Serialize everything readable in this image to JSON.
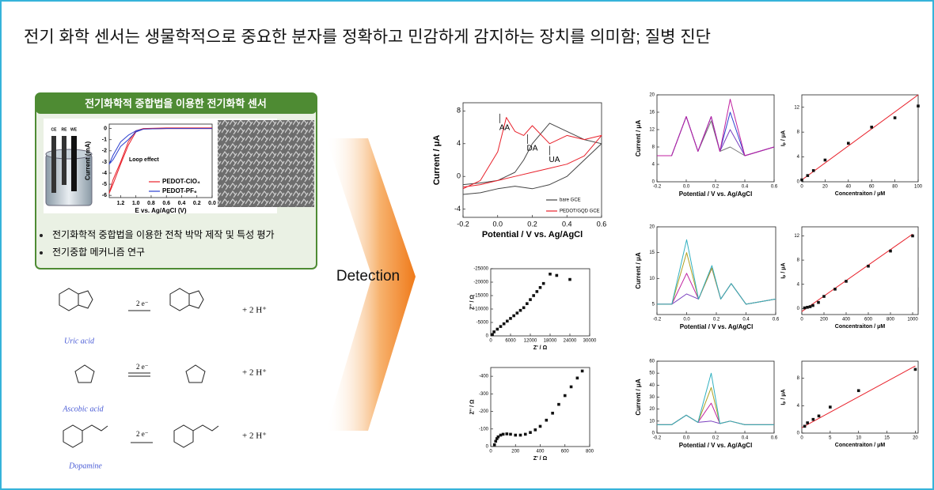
{
  "title": "전기 화학 센서는 생물학적으로 중요한 분자를 정확하고 민감하게 감지하는 장치를 의미함; 질병 진단",
  "panel": {
    "header": "전기화학적 중합법을 이용한 전기화학 센서",
    "cell_labels": [
      "CE",
      "RE",
      "WE"
    ],
    "bullets": [
      "전기화학적 중합법을 이용한 전착 박막 제작 및 특성 평가",
      "전기중합 메커니즘 연구"
    ]
  },
  "reactions": [
    {
      "name": "Uric acid",
      "electrons": "2 e⁻",
      "product": "+  2 H⁺"
    },
    {
      "name": "Ascobic acid",
      "electrons": "2 e⁻",
      "product": "+  2 H⁺"
    },
    {
      "name": "Dopamine",
      "electrons": "2 e⁻",
      "product": "+  2 H⁺"
    }
  ],
  "arrow_label": "Detection",
  "chart_data": [
    {
      "type": "line",
      "xlabel": "E vs. Ag/AgCl (V)",
      "ylabel": "Current (mA)",
      "annotation": "Loop effect",
      "xlim": [
        1.35,
        0.0
      ],
      "xticks": [
        1.2,
        {
          "value": 1.0,
          "label": "1.0"
        },
        0.8,
        0.6,
        0.4,
        0.2,
        {
          "value": 0.0,
          "label": "0.0"
        }
      ],
      "ylim": [
        -6.2,
        0.4
      ],
      "yticks": [
        0,
        -1,
        -2,
        -3,
        -4,
        -5,
        -6
      ],
      "legend": "lower right",
      "series": [
        {
          "name": "PEDOT-ClO₄",
          "color": "#e8202a",
          "x": [
            0.0,
            0.6,
            0.9,
            1.0,
            1.1,
            1.2,
            1.3,
            1.35,
            1.3,
            1.2,
            1.1,
            1.0,
            0.9,
            0.6,
            0.0
          ],
          "y": [
            0,
            0,
            -0.05,
            -0.3,
            -1.5,
            -3.2,
            -5,
            -5.8,
            -4.6,
            -3,
            -1.2,
            -0.2,
            0,
            0.05,
            0.05
          ]
        },
        {
          "name": "PEDOT-PF₆",
          "color": "#2a3fd0",
          "x": [
            0.0,
            0.6,
            0.9,
            1.0,
            1.1,
            1.2,
            1.3,
            1.35,
            1.3,
            1.2,
            1.1,
            1.0,
            0.9,
            0.6,
            0.0
          ],
          "y": [
            0,
            0,
            -0.05,
            -0.2,
            -0.6,
            -1.2,
            -2.4,
            -3.2,
            -2.8,
            -1.6,
            -1.0,
            -0.3,
            -0.05,
            0,
            0
          ]
        }
      ]
    },
    {
      "type": "line",
      "xlabel": "Potential / V vs. Ag/AgCl",
      "ylabel": "Current / μA",
      "annotations": [
        "AA",
        "DA",
        "UA"
      ],
      "xlim": [
        -0.2,
        0.6
      ],
      "xticks": [
        -0.2,
        {
          "value": 0.0,
          "label": "0.0"
        },
        0.2,
        0.4,
        0.6
      ],
      "ylim": [
        -5,
        9
      ],
      "yticks": [
        -4,
        0,
        4,
        8
      ],
      "legend": "lower right",
      "series": [
        {
          "name": "bare GCE",
          "color": "#444444",
          "x": [
            -0.2,
            -0.1,
            0,
            0.05,
            0.1,
            0.15,
            0.2,
            0.3,
            0.4,
            0.5,
            0.6,
            0.5,
            0.4,
            0.3,
            0.2,
            0.1,
            0,
            -0.1,
            -0.2
          ],
          "y": [
            -1,
            -0.8,
            -0.5,
            0,
            0.5,
            2,
            4,
            6.5,
            5.5,
            4.5,
            4,
            2,
            0,
            -1,
            -1.5,
            -1.2,
            -1.5,
            -2,
            -2.2
          ]
        },
        {
          "name": "PEDOT/GQD GCE",
          "color": "#e8202a",
          "x": [
            -0.2,
            -0.1,
            0,
            0.05,
            0.1,
            0.15,
            0.2,
            0.3,
            0.4,
            0.5,
            0.6,
            0.5,
            0.4,
            0.3,
            0.2,
            0.1,
            0,
            -0.1,
            -0.2
          ],
          "y": [
            -1.5,
            -0.5,
            3,
            7.2,
            5.5,
            5,
            6.2,
            4,
            5,
            4.5,
            5,
            2.5,
            1.5,
            1,
            0.5,
            0,
            -0.5,
            -1,
            -1.3
          ]
        }
      ]
    },
    {
      "type": "scatter",
      "xlabel": "Z' / Ω",
      "ylabel": "Z'' / Ω",
      "xlim": [
        0,
        30000
      ],
      "xticks": [
        0,
        6000,
        12000,
        18000,
        24000,
        30000
      ],
      "ylim": [
        0,
        -25000
      ],
      "yticks": [
        0,
        -5000,
        -10000,
        -15000,
        -20000,
        -25000
      ],
      "series": [
        {
          "color": "#111111",
          "x": [
            500,
            1000,
            2000,
            3000,
            4000,
            5000,
            6000,
            7000,
            8000,
            9000,
            10000,
            11000,
            12000,
            13000,
            14000,
            15000,
            16000,
            18000,
            20000,
            24000
          ],
          "y": [
            -500,
            -1500,
            -2500,
            -3500,
            -4500,
            -5500,
            -6500,
            -7500,
            -8500,
            -9500,
            -10500,
            -12000,
            -13500,
            -15000,
            -16500,
            -18000,
            -19500,
            -23000,
            -22500,
            -21000
          ]
        }
      ]
    },
    {
      "type": "scatter",
      "xlabel": "Z' / Ω",
      "ylabel": "Z'' / Ω",
      "xlim": [
        0,
        800
      ],
      "xticks": [
        0,
        200,
        400,
        600,
        800
      ],
      "ylim": [
        0,
        -450
      ],
      "yticks": [
        0,
        -100,
        -200,
        -300,
        -400
      ],
      "series": [
        {
          "color": "#111111",
          "x": [
            30,
            40,
            50,
            60,
            80,
            100,
            130,
            160,
            200,
            240,
            280,
            320,
            360,
            400,
            450,
            500,
            550,
            600,
            650,
            700,
            740
          ],
          "y": [
            -10,
            -30,
            -45,
            -55,
            -65,
            -70,
            -72,
            -70,
            -65,
            -65,
            -70,
            -80,
            -95,
            -115,
            -150,
            -190,
            -240,
            -290,
            -340,
            -390,
            -430
          ]
        }
      ]
    },
    {
      "type": "line",
      "xlabel": "Potential / V vs. Ag/AgCl",
      "ylabel": "Current / μA",
      "xlim": [
        -0.2,
        0.6
      ],
      "xticks": [
        -0.2,
        {
          "value": 0.0,
          "label": "0.0"
        },
        0.2,
        0.4,
        0.6
      ],
      "ylim": [
        0,
        20
      ],
      "yticks": [
        0,
        4,
        8,
        12,
        16,
        20
      ],
      "series": [
        {
          "color": "#777777",
          "x": [
            -0.2,
            -0.1,
            0,
            0.08,
            0.17,
            0.23,
            0.3,
            0.4,
            0.6
          ],
          "y": [
            6,
            6,
            15,
            7,
            14,
            7,
            8,
            6,
            8
          ]
        },
        {
          "color": "#7a3fbf",
          "x": [
            -0.2,
            -0.1,
            0,
            0.08,
            0.17,
            0.23,
            0.3,
            0.4,
            0.6
          ],
          "y": [
            6,
            6,
            15,
            7,
            15,
            7,
            12,
            6,
            8
          ]
        },
        {
          "color": "#2a3fd0",
          "x": [
            -0.2,
            -0.1,
            0,
            0.08,
            0.17,
            0.23,
            0.3,
            0.4,
            0.6
          ],
          "y": [
            6,
            6,
            15,
            7,
            15,
            7,
            16,
            6,
            8
          ]
        },
        {
          "color": "#c020a0",
          "x": [
            -0.2,
            -0.1,
            0,
            0.08,
            0.17,
            0.23,
            0.3,
            0.4,
            0.6
          ],
          "y": [
            6,
            6,
            15,
            7,
            15,
            7,
            19,
            6,
            8
          ]
        }
      ]
    },
    {
      "type": "line",
      "xlabel": "Potential / V vs. Ag/AgCl",
      "ylabel": "Current / μA",
      "xlim": [
        -0.2,
        0.6
      ],
      "xticks": [
        -0.2,
        {
          "value": 0.0,
          "label": "0.0"
        },
        0.2,
        0.4,
        0.6
      ],
      "ylim": [
        3,
        20
      ],
      "yticks": [
        5,
        10,
        15,
        20
      ],
      "series": [
        {
          "color": "#7a3fbf",
          "x": [
            -0.2,
            -0.1,
            0,
            0.08,
            0.17,
            0.23,
            0.3,
            0.4,
            0.6
          ],
          "y": [
            5,
            5,
            7,
            6,
            12,
            6,
            9,
            5,
            6
          ]
        },
        {
          "color": "#c020a0",
          "x": [
            -0.2,
            -0.1,
            0,
            0.08,
            0.17,
            0.23,
            0.3,
            0.4,
            0.6
          ],
          "y": [
            5,
            5,
            11,
            6,
            12,
            6,
            9,
            5,
            6
          ]
        },
        {
          "color": "#b0a020",
          "x": [
            -0.2,
            -0.1,
            0,
            0.08,
            0.17,
            0.23,
            0.3,
            0.4,
            0.6
          ],
          "y": [
            5,
            5,
            15,
            6,
            12,
            6,
            9,
            5,
            6
          ]
        },
        {
          "color": "#30b0c0",
          "x": [
            -0.2,
            -0.1,
            0,
            0.08,
            0.17,
            0.23,
            0.3,
            0.4,
            0.6
          ],
          "y": [
            5,
            5,
            17.5,
            6,
            12.5,
            6,
            9,
            5,
            6
          ]
        }
      ]
    },
    {
      "type": "line",
      "xlabel": "Potential / V vs. Ag/AgCl",
      "ylabel": "Current / μA",
      "xlim": [
        -0.2,
        0.6
      ],
      "xticks": [
        -0.2,
        {
          "value": 0.0,
          "label": "0.0"
        },
        0.2,
        0.4,
        0.6
      ],
      "ylim": [
        0,
        60
      ],
      "yticks": [
        0,
        10,
        20,
        30,
        40,
        50,
        60
      ],
      "series": [
        {
          "color": "#7a3fbf",
          "x": [
            -0.2,
            -0.1,
            0,
            0.08,
            0.17,
            0.23,
            0.3,
            0.4,
            0.6
          ],
          "y": [
            7,
            7,
            15,
            9,
            10,
            8,
            10,
            7,
            7
          ]
        },
        {
          "color": "#c020a0",
          "x": [
            -0.2,
            -0.1,
            0,
            0.08,
            0.17,
            0.23,
            0.3,
            0.4,
            0.6
          ],
          "y": [
            7,
            7,
            15,
            9,
            25,
            8,
            10,
            7,
            7
          ]
        },
        {
          "color": "#b0a020",
          "x": [
            -0.2,
            -0.1,
            0,
            0.08,
            0.17,
            0.23,
            0.3,
            0.4,
            0.6
          ],
          "y": [
            7,
            7,
            15,
            9,
            38,
            8,
            10,
            7,
            7
          ]
        },
        {
          "color": "#30b0c0",
          "x": [
            -0.2,
            -0.1,
            0,
            0.08,
            0.17,
            0.23,
            0.3,
            0.4,
            0.6
          ],
          "y": [
            7,
            7,
            15,
            9,
            50,
            8,
            10,
            7,
            7
          ]
        }
      ]
    },
    {
      "type": "scatter",
      "xlabel": "Concentraiton / μM",
      "ylabel": "Iₚ / μA",
      "xlim": [
        0,
        100
      ],
      "xticks": [
        0,
        20,
        40,
        60,
        80,
        100
      ],
      "ylim": [
        0,
        14
      ],
      "yticks": [
        0,
        4,
        8,
        12
      ],
      "series": [
        {
          "color": "#111111",
          "x": [
            0,
            5,
            10,
            20,
            40,
            60,
            80,
            100
          ],
          "y": [
            0.3,
            1,
            1.8,
            3.5,
            6.2,
            8.8,
            10.3,
            12.2
          ]
        }
      ],
      "fit": {
        "color": "#e8202a",
        "x": [
          0,
          100
        ],
        "y": [
          0.3,
          14
        ]
      }
    },
    {
      "type": "scatter",
      "xlabel": "Concentraiton / μM",
      "ylabel": "Iₚ / μA",
      "xlim": [
        0,
        1050
      ],
      "xticks": [
        0,
        200,
        400,
        600,
        800,
        1000
      ],
      "ylim": [
        -1,
        13.5
      ],
      "yticks": [
        0,
        4,
        8,
        12
      ],
      "series": [
        {
          "color": "#111111",
          "x": [
            25,
            50,
            75,
            100,
            150,
            200,
            300,
            400,
            600,
            800,
            1000
          ],
          "y": [
            0.1,
            0.2,
            0.3,
            0.5,
            1,
            2,
            3.2,
            4.5,
            7,
            9.5,
            12
          ]
        }
      ],
      "fit": {
        "color": "#e8202a",
        "x": [
          0,
          1000
        ],
        "y": [
          -0.5,
          12.3
        ]
      }
    },
    {
      "type": "scatter",
      "xlabel": "Concentraiton / μM",
      "ylabel": "Iₚ / μA",
      "xlim": [
        0,
        20.5
      ],
      "xticks": [
        0,
        5,
        10,
        15,
        20
      ],
      "ylim": [
        0,
        10.5
      ],
      "yticks": [
        0,
        4,
        8
      ],
      "series": [
        {
          "color": "#111111",
          "x": [
            0.5,
            1,
            2,
            3,
            5,
            10,
            20
          ],
          "y": [
            1,
            1.5,
            2,
            2.5,
            3.8,
            6.2,
            9.3
          ]
        }
      ],
      "fit": {
        "color": "#e8202a",
        "x": [
          0,
          20
        ],
        "y": [
          0.8,
          9.8
        ]
      }
    }
  ]
}
